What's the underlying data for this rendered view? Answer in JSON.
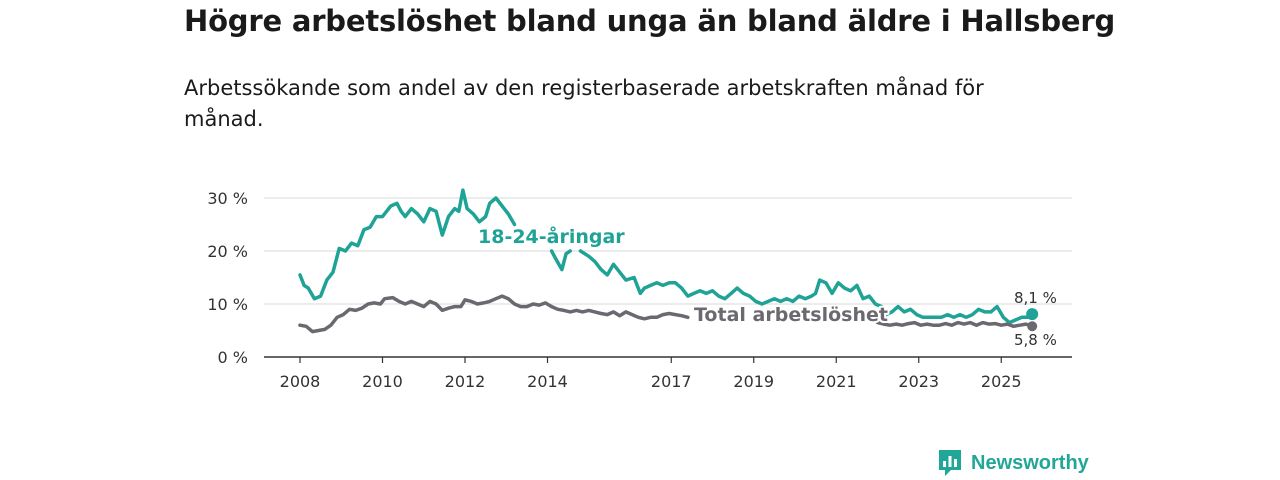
{
  "title": "Högre arbetslöshet bland unga än bland äldre i Hallsberg",
  "subtitle": "Arbetssökande som andel av den registerbaserade arbetskraften månad för månad.",
  "brand": "Newsworthy",
  "colors": {
    "youth": "#1fa396",
    "total": "#6b6870",
    "grid": "#d9d9d9",
    "axis": "#333333",
    "brand": "#21a797"
  },
  "chart_data": {
    "type": "line",
    "title": "Högre arbetslöshet bland unga än bland äldre i Hallsberg",
    "xlabel": "",
    "ylabel": "",
    "xlim": [
      2008,
      2026.2
    ],
    "ylim": [
      0,
      32
    ],
    "y_ticks": [
      0,
      10,
      20,
      30
    ],
    "y_tick_labels": [
      "0 %",
      "10 %",
      "20 %",
      "30 %"
    ],
    "x_ticks": [
      2008,
      2010,
      2012,
      2014,
      2017,
      2019,
      2021,
      2023,
      2025
    ],
    "x_tick_labels": [
      "2008",
      "2010",
      "2012",
      "2014",
      "2017",
      "2019",
      "2021",
      "2023",
      "2025"
    ],
    "grid": true,
    "series": [
      {
        "name": "18-24-åringar",
        "label": "18-24-åringar",
        "end_label": "8,1 %",
        "end_value": 8.1,
        "segments": [
          [
            [
              2008.0,
              15.5
            ],
            [
              2008.1,
              13.5
            ],
            [
              2008.2,
              13.0
            ],
            [
              2008.35,
              11.0
            ],
            [
              2008.5,
              11.5
            ],
            [
              2008.65,
              14.5
            ],
            [
              2008.8,
              16.0
            ],
            [
              2008.95,
              20.5
            ],
            [
              2009.1,
              20.0
            ],
            [
              2009.25,
              21.5
            ],
            [
              2009.4,
              21.0
            ],
            [
              2009.55,
              24.0
            ],
            [
              2009.7,
              24.5
            ],
            [
              2009.85,
              26.5
            ],
            [
              2010.0,
              26.5
            ],
            [
              2010.1,
              27.5
            ],
            [
              2010.2,
              28.5
            ],
            [
              2010.35,
              29.0
            ],
            [
              2010.45,
              27.5
            ],
            [
              2010.55,
              26.5
            ],
            [
              2010.7,
              28.0
            ],
            [
              2010.85,
              27.0
            ],
            [
              2011.0,
              25.5
            ],
            [
              2011.15,
              28.0
            ],
            [
              2011.3,
              27.5
            ],
            [
              2011.45,
              23.0
            ],
            [
              2011.6,
              26.5
            ],
            [
              2011.75,
              28.0
            ],
            [
              2011.85,
              27.5
            ],
            [
              2011.95,
              31.5
            ],
            [
              2012.05,
              28.0
            ],
            [
              2012.2,
              27.0
            ],
            [
              2012.35,
              25.5
            ],
            [
              2012.5,
              26.5
            ],
            [
              2012.6,
              29.0
            ],
            [
              2012.75,
              30.0
            ],
            [
              2012.9,
              28.5
            ],
            [
              2013.05,
              27.0
            ],
            [
              2013.2,
              25.0
            ]
          ],
          [
            [
              2014.1,
              20.0
            ],
            [
              2014.2,
              18.5
            ],
            [
              2014.35,
              16.5
            ],
            [
              2014.45,
              19.5
            ],
            [
              2014.55,
              20.0
            ]
          ],
          [
            [
              2014.8,
              20.0
            ],
            [
              2015.0,
              19.0
            ],
            [
              2015.15,
              18.0
            ],
            [
              2015.3,
              16.5
            ],
            [
              2015.45,
              15.5
            ],
            [
              2015.6,
              17.5
            ],
            [
              2015.75,
              16.0
            ],
            [
              2015.9,
              14.5
            ],
            [
              2016.1,
              15.0
            ],
            [
              2016.25,
              12.0
            ],
            [
              2016.35,
              13.0
            ],
            [
              2016.5,
              13.5
            ],
            [
              2016.65,
              14.0
            ],
            [
              2016.8,
              13.5
            ],
            [
              2016.95,
              14.0
            ],
            [
              2017.1,
              14.0
            ],
            [
              2017.25,
              13.0
            ],
            [
              2017.4,
              11.5
            ],
            [
              2017.55,
              12.0
            ],
            [
              2017.7,
              12.5
            ],
            [
              2017.85,
              12.0
            ],
            [
              2018.0,
              12.5
            ],
            [
              2018.15,
              11.5
            ],
            [
              2018.3,
              11.0
            ],
            [
              2018.45,
              12.0
            ],
            [
              2018.6,
              13.0
            ],
            [
              2018.75,
              12.0
            ],
            [
              2018.9,
              11.5
            ],
            [
              2019.05,
              10.5
            ],
            [
              2019.2,
              10.0
            ],
            [
              2019.35,
              10.5
            ],
            [
              2019.5,
              11.0
            ],
            [
              2019.65,
              10.5
            ],
            [
              2019.8,
              11.0
            ],
            [
              2019.95,
              10.5
            ],
            [
              2020.1,
              11.5
            ],
            [
              2020.25,
              11.0
            ],
            [
              2020.4,
              11.5
            ],
            [
              2020.5,
              12.0
            ],
            [
              2020.6,
              14.5
            ],
            [
              2020.75,
              14.0
            ],
            [
              2020.9,
              12.0
            ],
            [
              2021.05,
              14.0
            ],
            [
              2021.2,
              13.0
            ],
            [
              2021.35,
              12.5
            ],
            [
              2021.5,
              13.5
            ],
            [
              2021.65,
              11.0
            ],
            [
              2021.8,
              11.5
            ],
            [
              2021.95,
              10.0
            ],
            [
              2022.1,
              9.5
            ],
            [
              2022.2,
              8.0
            ],
            [
              2022.35,
              8.5
            ],
            [
              2022.5,
              9.5
            ],
            [
              2022.65,
              8.5
            ],
            [
              2022.8,
              9.0
            ],
            [
              2022.95,
              8.0
            ],
            [
              2023.1,
              7.5
            ],
            [
              2023.25,
              7.5
            ],
            [
              2023.4,
              7.5
            ],
            [
              2023.55,
              7.5
            ],
            [
              2023.7,
              8.0
            ],
            [
              2023.85,
              7.5
            ],
            [
              2024.0,
              8.0
            ],
            [
              2024.15,
              7.5
            ],
            [
              2024.3,
              8.0
            ],
            [
              2024.45,
              9.0
            ],
            [
              2024.6,
              8.5
            ],
            [
              2024.75,
              8.5
            ],
            [
              2024.9,
              9.5
            ],
            [
              2025.05,
              7.5
            ],
            [
              2025.2,
              6.5
            ],
            [
              2025.35,
              7.0
            ],
            [
              2025.5,
              7.5
            ],
            [
              2025.65,
              7.5
            ],
            [
              2025.75,
              8.1
            ]
          ]
        ]
      },
      {
        "name": "Total arbetslöshet",
        "label": "Total arbetslöshet",
        "end_label": "5,8 %",
        "end_value": 5.8,
        "segments": [
          [
            [
              2008.0,
              6.0
            ],
            [
              2008.15,
              5.8
            ],
            [
              2008.3,
              4.8
            ],
            [
              2008.45,
              5.0
            ],
            [
              2008.6,
              5.2
            ],
            [
              2008.75,
              6.0
            ],
            [
              2008.9,
              7.5
            ],
            [
              2009.05,
              8.0
            ],
            [
              2009.2,
              9.0
            ],
            [
              2009.35,
              8.8
            ],
            [
              2009.5,
              9.2
            ],
            [
              2009.65,
              10.0
            ],
            [
              2009.8,
              10.2
            ],
            [
              2009.95,
              10.0
            ],
            [
              2010.05,
              11.0
            ],
            [
              2010.25,
              11.2
            ],
            [
              2010.4,
              10.5
            ],
            [
              2010.55,
              10.0
            ],
            [
              2010.7,
              10.5
            ],
            [
              2010.85,
              10.0
            ],
            [
              2011.0,
              9.5
            ],
            [
              2011.15,
              10.5
            ],
            [
              2011.3,
              10.0
            ],
            [
              2011.45,
              8.8
            ],
            [
              2011.6,
              9.2
            ],
            [
              2011.75,
              9.5
            ],
            [
              2011.9,
              9.5
            ],
            [
              2012.0,
              10.8
            ],
            [
              2012.15,
              10.5
            ],
            [
              2012.3,
              10.0
            ],
            [
              2012.45,
              10.2
            ],
            [
              2012.6,
              10.5
            ],
            [
              2012.75,
              11.0
            ],
            [
              2012.9,
              11.5
            ],
            [
              2013.05,
              11.0
            ],
            [
              2013.2,
              10.0
            ],
            [
              2013.35,
              9.5
            ],
            [
              2013.5,
              9.5
            ],
            [
              2013.65,
              10.0
            ],
            [
              2013.8,
              9.8
            ],
            [
              2013.95,
              10.2
            ],
            [
              2014.1,
              9.5
            ],
            [
              2014.25,
              9.0
            ],
            [
              2014.4,
              8.8
            ],
            [
              2014.55,
              8.5
            ],
            [
              2014.7,
              8.8
            ],
            [
              2014.85,
              8.5
            ],
            [
              2015.0,
              8.8
            ],
            [
              2015.15,
              8.5
            ],
            [
              2015.3,
              8.2
            ],
            [
              2015.45,
              8.0
            ],
            [
              2015.6,
              8.5
            ],
            [
              2015.75,
              7.8
            ],
            [
              2015.9,
              8.5
            ],
            [
              2016.05,
              8.0
            ],
            [
              2016.2,
              7.5
            ],
            [
              2016.35,
              7.2
            ],
            [
              2016.5,
              7.5
            ],
            [
              2016.65,
              7.5
            ],
            [
              2016.8,
              8.0
            ],
            [
              2016.95,
              8.2
            ],
            [
              2017.1,
              8.0
            ],
            [
              2017.25,
              7.8
            ],
            [
              2017.4,
              7.5
            ]
          ],
          [
            [
              2022.0,
              6.5
            ],
            [
              2022.15,
              6.2
            ],
            [
              2022.3,
              6.0
            ],
            [
              2022.45,
              6.2
            ],
            [
              2022.6,
              6.0
            ],
            [
              2022.75,
              6.3
            ],
            [
              2022.9,
              6.5
            ],
            [
              2023.05,
              6.0
            ],
            [
              2023.2,
              6.2
            ],
            [
              2023.35,
              6.0
            ],
            [
              2023.5,
              6.0
            ],
            [
              2023.65,
              6.3
            ],
            [
              2023.8,
              6.0
            ],
            [
              2023.95,
              6.5
            ],
            [
              2024.1,
              6.2
            ],
            [
              2024.25,
              6.5
            ],
            [
              2024.4,
              6.0
            ],
            [
              2024.55,
              6.5
            ],
            [
              2024.7,
              6.2
            ],
            [
              2024.85,
              6.3
            ],
            [
              2025.0,
              6.0
            ],
            [
              2025.15,
              6.2
            ],
            [
              2025.3,
              5.8
            ],
            [
              2025.45,
              6.0
            ],
            [
              2025.6,
              6.2
            ],
            [
              2025.75,
              5.8
            ]
          ]
        ]
      }
    ]
  }
}
